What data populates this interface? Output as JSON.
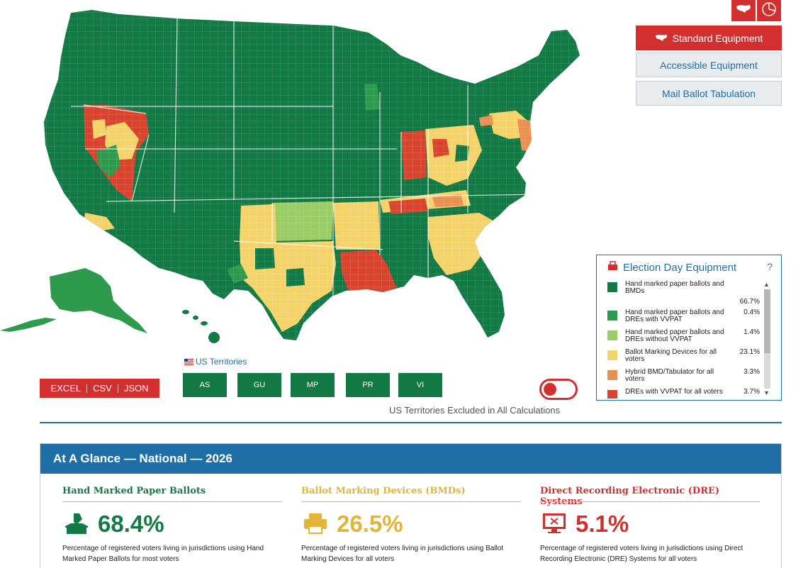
{
  "view_toggles": [
    {
      "name": "map-view",
      "icon": "us-map-icon"
    },
    {
      "name": "chart-view",
      "icon": "pie-chart-icon"
    }
  ],
  "equipment_tabs": {
    "standard": "Standard Equipment",
    "accessible": "Accessible Equipment",
    "mail": "Mail Ballot Tabulation"
  },
  "legend": {
    "title": "Election Day Equipment",
    "help": "?",
    "items": [
      {
        "label": "Hand marked paper ballots and BMDs",
        "pct": "66.7%",
        "color": "#137a45"
      },
      {
        "label": "Hand marked paper ballots and DREs with VVPAT",
        "pct": "0.4%",
        "color": "#2e9a4e"
      },
      {
        "label": "Hand marked paper ballots and DREs without VVPAT",
        "pct": "1.4%",
        "color": "#9ccc65"
      },
      {
        "label": "Ballot Marking Devices for all voters",
        "pct": "23.1%",
        "color": "#f5d36b"
      },
      {
        "label": "Hybrid BMD/Tabulator for all voters",
        "pct": "3.3%",
        "color": "#ea8f52"
      },
      {
        "label": "DREs with VVPAT for all voters",
        "pct": "3.7%",
        "color": "#d9442f"
      }
    ]
  },
  "export": {
    "excel": "EXCEL",
    "csv": "CSV",
    "json": "JSON"
  },
  "territories": {
    "label": "US Territories",
    "buttons": [
      "AS",
      "GU",
      "MP",
      "PR",
      "VI"
    ],
    "note": "US Territories Excluded in All Calculations"
  },
  "glance": {
    "title": "At A Glance — National — 2026",
    "cols": [
      {
        "heading": "Hand Marked Paper Ballots",
        "value": "68.4%",
        "color": "#137a45",
        "icon": "ballot-box-icon",
        "desc": "Percentage of registered voters living in jurisdictions using Hand Marked Paper Ballots for most voters"
      },
      {
        "heading": "Ballot Marking Devices (BMDs)",
        "value": "26.5%",
        "color": "#e3b437",
        "icon": "printer-icon",
        "desc": "Percentage of registered voters living in jurisdictions using Ballot Marking Devices for all voters"
      },
      {
        "heading": "Direct Recording Electronic (DRE) Systems",
        "value": "5.1%",
        "color": "#d32f2f",
        "icon": "monitor-x-icon",
        "desc": "Percentage of registered voters living in jurisdictions using Direct Recording Electronic (DRE) Systems for all voters"
      }
    ]
  }
}
